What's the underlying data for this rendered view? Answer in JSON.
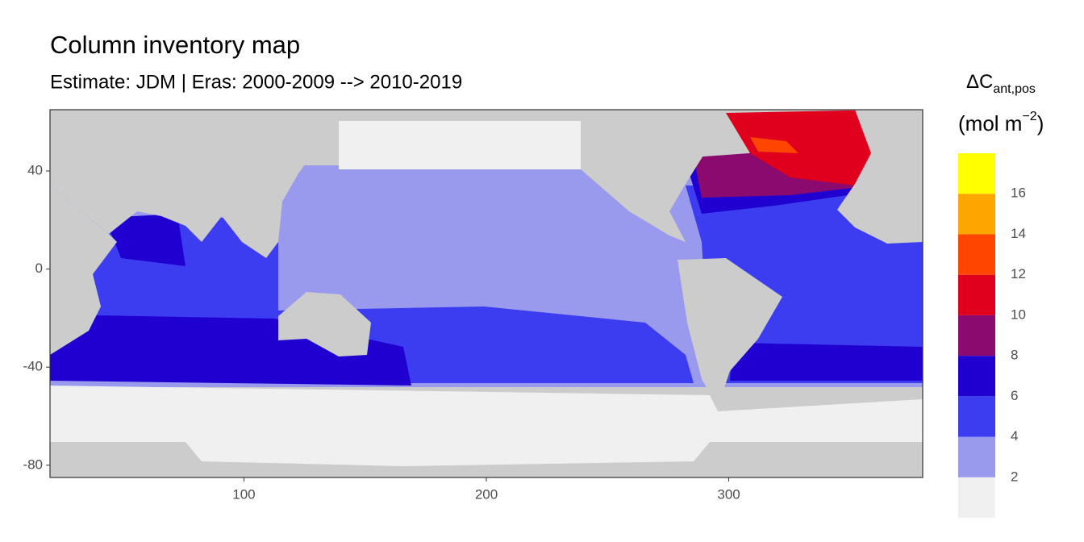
{
  "chart_data": {
    "type": "map",
    "title": "Column inventory map",
    "subtitle": "Estimate: JDM  | Eras: 2000-2009 --> 2010-2019",
    "xlim": [
      20,
      380
    ],
    "ylim": [
      -85,
      65
    ],
    "xticks": [
      100,
      200,
      300
    ],
    "yticks": [
      -80,
      -40,
      0,
      40
    ],
    "legend": {
      "title": "ΔC",
      "title_subscript": "ant,pos",
      "unit": "(mol m",
      "unit_superscript": "−2",
      "unit_close": ")",
      "breaks": [
        2,
        4,
        6,
        8,
        10,
        12,
        14,
        16
      ],
      "colors": [
        "#f0f0f0",
        "#9999ee",
        "#3c3cf0",
        "#2000d0",
        "#8b0a70",
        "#e0001e",
        "#ff4500",
        "#ffa500",
        "#ffff00"
      ]
    }
  }
}
